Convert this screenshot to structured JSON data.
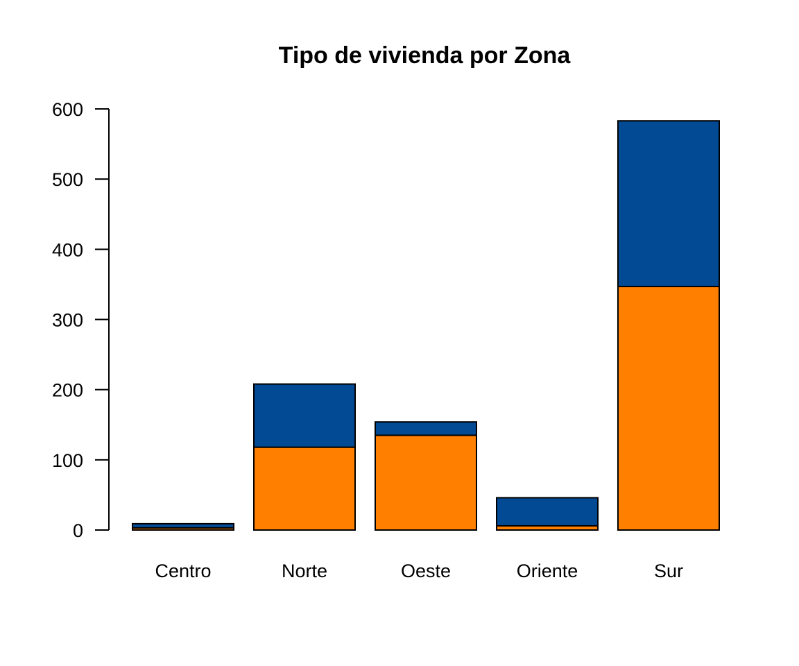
{
  "chart_data": {
    "type": "bar",
    "stacked": true,
    "title": "Tipo de vivienda por Zona",
    "xlabel": "",
    "ylabel": "",
    "categories": [
      "Centro",
      "Norte",
      "Oeste",
      "Oriente",
      "Sur"
    ],
    "series": [
      {
        "values": [
          3,
          118,
          135,
          6,
          347
        ],
        "color": "#FF8000"
      },
      {
        "values": [
          6,
          90,
          19,
          40,
          236
        ],
        "color": "#034A94"
      }
    ],
    "ylim": [
      0,
      600
    ],
    "yticks": [
      0,
      100,
      200,
      300,
      400,
      500,
      600
    ],
    "grid": false,
    "legend": "none"
  }
}
